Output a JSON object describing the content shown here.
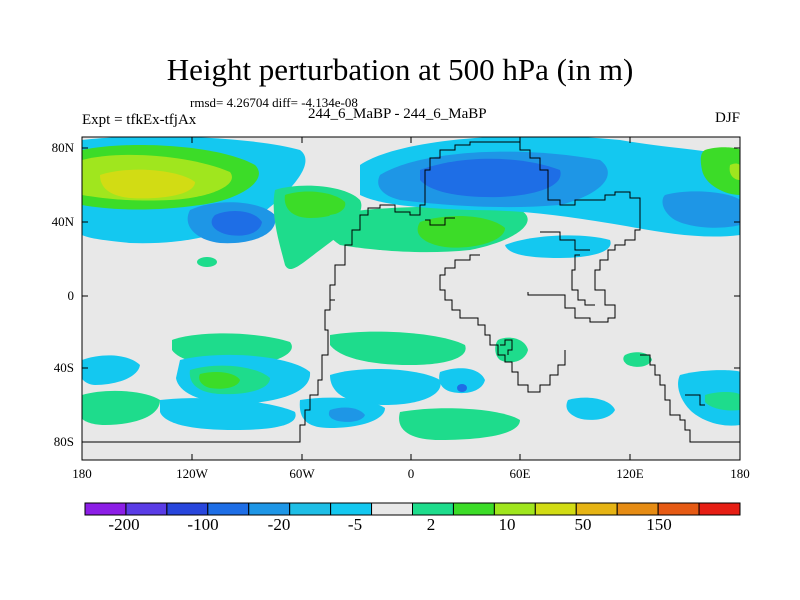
{
  "header": {
    "title": "Height perturbation at 500 hPa (in m)",
    "stats": "rmsd= 4.26704 diff= -4.134e-08",
    "experiment": "Expt = tfkEx-tfjAx",
    "case": "244_6_MaBP - 244_6_MaBP",
    "season": "DJF"
  },
  "map": {
    "y_ticks": [
      "80N",
      "40N",
      "0",
      "40S",
      "80S"
    ],
    "x_ticks": [
      "180",
      "120W",
      "60W",
      "0",
      "60E",
      "120E",
      "180"
    ],
    "background_color": "#e8e8e8",
    "outline_color": "#000000"
  },
  "colorbar": {
    "labels": [
      "-200",
      "-100",
      "-20",
      "-5",
      "2",
      "10",
      "50",
      "150"
    ],
    "colors": [
      "#8c1ee6",
      "#5a3ce6",
      "#2846dc",
      "#1e6ee6",
      "#1e96e6",
      "#1ebee6",
      "#14c8f0",
      "#e8e8e8",
      "#1edc8c",
      "#3cdc28",
      "#a0e61e",
      "#d2dc14",
      "#e6b414",
      "#e68c14",
      "#e65a14",
      "#e61e14"
    ]
  }
}
